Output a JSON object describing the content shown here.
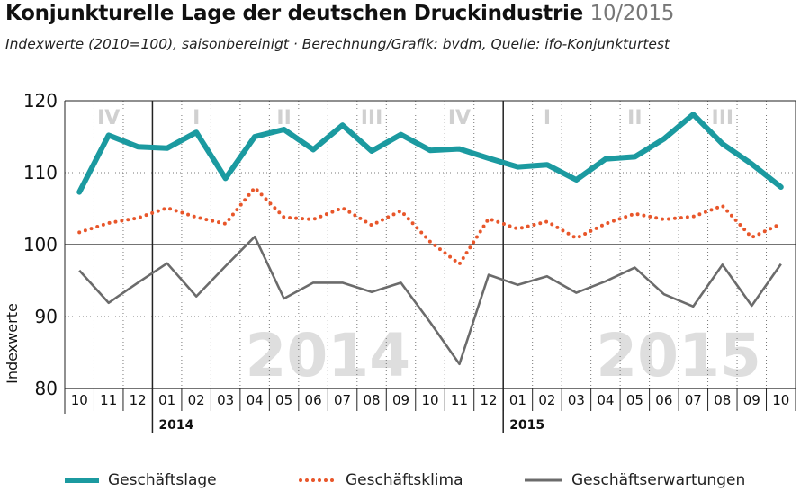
{
  "title": "Konjunkturelle Lage der deutschen Druckindustrie",
  "title_date": "10/2015",
  "subtitle": "Indexwerte (2010=100), saisonbereinigt · Berechnung/Grafik: bvdm, Quelle: ifo-Konjunkturtest",
  "chart_data": {
    "type": "line",
    "ylabel": "Indexwerte",
    "ylim": [
      80,
      120
    ],
    "yticks": [
      80,
      90,
      100,
      110,
      120
    ],
    "reference_line": 100,
    "categories": [
      "10",
      "11",
      "12",
      "01",
      "02",
      "03",
      "04",
      "05",
      "06",
      "07",
      "08",
      "09",
      "10",
      "11",
      "12",
      "01",
      "02",
      "03",
      "04",
      "05",
      "06",
      "07",
      "08",
      "09",
      "10"
    ],
    "year_labels": [
      {
        "label": "2014",
        "start_index": 3
      },
      {
        "label": "2015",
        "start_index": 15
      }
    ],
    "quarter_labels": [
      {
        "label": "IV",
        "center": 1
      },
      {
        "label": "I",
        "center": 4
      },
      {
        "label": "II",
        "center": 7
      },
      {
        "label": "III",
        "center": 10
      },
      {
        "label": "IV",
        "center": 13
      },
      {
        "label": "I",
        "center": 16
      },
      {
        "label": "II",
        "center": 19
      },
      {
        "label": "III",
        "center": 22
      }
    ],
    "watermarks": [
      {
        "label": "2014",
        "center": 8.5
      },
      {
        "label": "2015",
        "center": 20.5
      }
    ],
    "series": [
      {
        "name": "Geschäftslage",
        "color": "#1b9aa0",
        "style": "solid-thick",
        "values": [
          107.3,
          115.2,
          113.6,
          113.4,
          115.6,
          109.2,
          115,
          116,
          113.2,
          116.6,
          113,
          115.3,
          113.1,
          113.3,
          112,
          110.8,
          111.1,
          109,
          111.9,
          112.2,
          114.7,
          118.1,
          114,
          111.2,
          108
        ]
      },
      {
        "name": "Geschäftsklima",
        "color": "#e8562a",
        "style": "dotted",
        "values": [
          101.7,
          103,
          103.7,
          105.1,
          103.8,
          102.9,
          107.9,
          103.8,
          103.5,
          105.1,
          102.7,
          104.7,
          100.4,
          97.3,
          103.6,
          102.2,
          103.2,
          100.9,
          102.9,
          104.3,
          103.5,
          103.9,
          105.4,
          101,
          102.9
        ]
      },
      {
        "name": "Geschäftserwartungen",
        "color": "#6b6b6b",
        "style": "solid-thin",
        "values": [
          96.4,
          91.9,
          94.7,
          97.4,
          92.8,
          97,
          101.1,
          92.5,
          94.7,
          94.7,
          93.4,
          94.7,
          89.2,
          83.4,
          95.8,
          94.4,
          95.6,
          93.3,
          94.9,
          96.8,
          93.1,
          91.4,
          97.2,
          91.5,
          97.3
        ]
      }
    ],
    "grid": true,
    "legend_position": "bottom"
  }
}
